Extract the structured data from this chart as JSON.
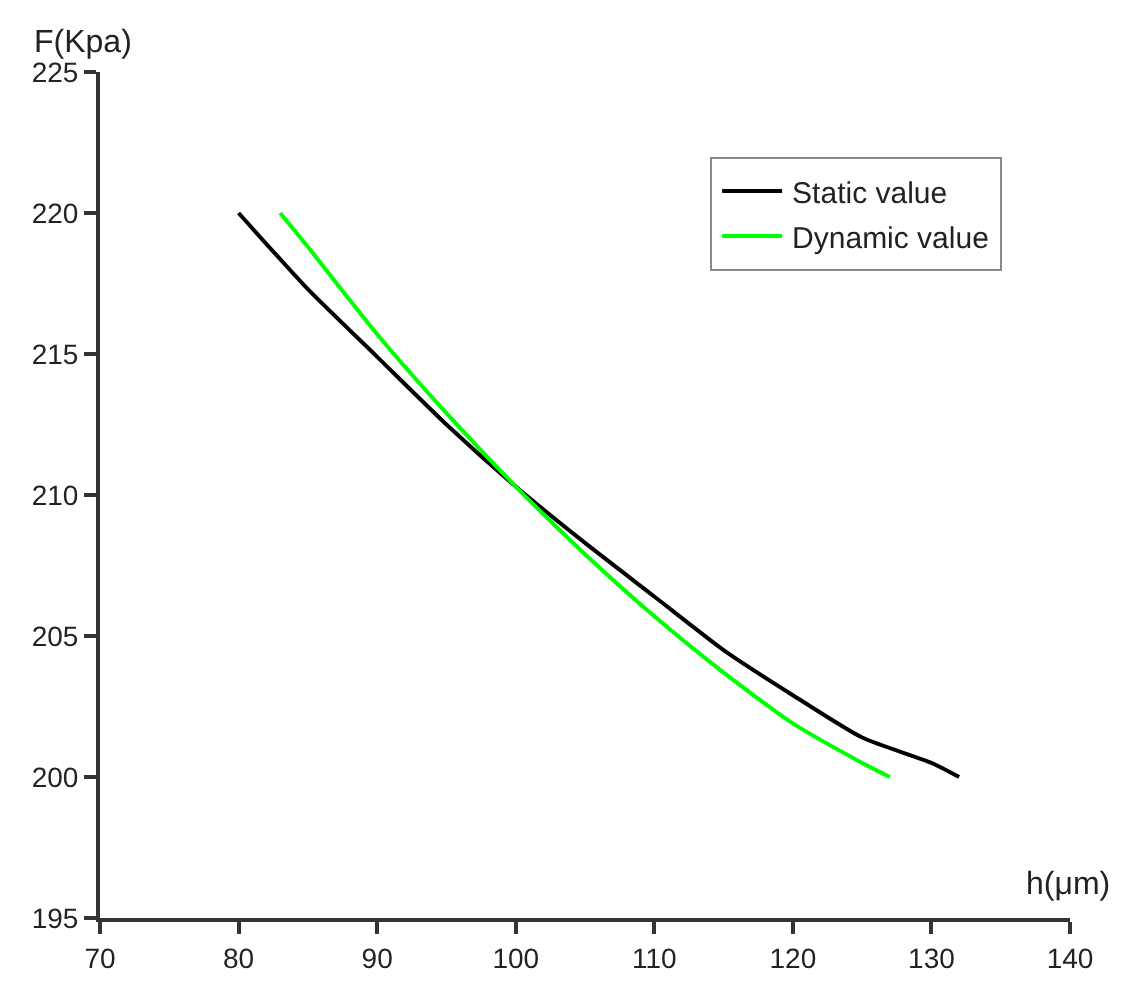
{
  "chart_data": {
    "type": "line",
    "xlabel": "h(μm)",
    "ylabel": "F(Kpa)",
    "xlim": [
      70,
      140
    ],
    "xticks": [
      70,
      80,
      90,
      100,
      110,
      120,
      130,
      140
    ],
    "ylim": [
      195,
      225
    ],
    "yticks": [
      195,
      200,
      205,
      210,
      215,
      220,
      225
    ],
    "grid": false,
    "legend": "top right",
    "marker": "none",
    "line_style": "solid",
    "series": [
      {
        "name": "Static value",
        "color": "#000000",
        "x": [
          80,
          85,
          90,
          95,
          100,
          105,
          110,
          115,
          120,
          125,
          130,
          132
        ],
        "values": [
          220,
          217.3,
          214.9,
          212.5,
          210.3,
          208.3,
          206.4,
          204.5,
          202.9,
          201.4,
          200.5,
          200
        ]
      },
      {
        "name": "Dynamic value",
        "color": "#00ff00",
        "x": [
          83,
          85,
          90,
          95,
          100,
          105,
          110,
          115,
          120,
          125,
          127
        ],
        "values": [
          220,
          218.8,
          215.7,
          212.9,
          210.3,
          207.9,
          205.7,
          203.7,
          201.9,
          200.5,
          200
        ]
      }
    ]
  }
}
